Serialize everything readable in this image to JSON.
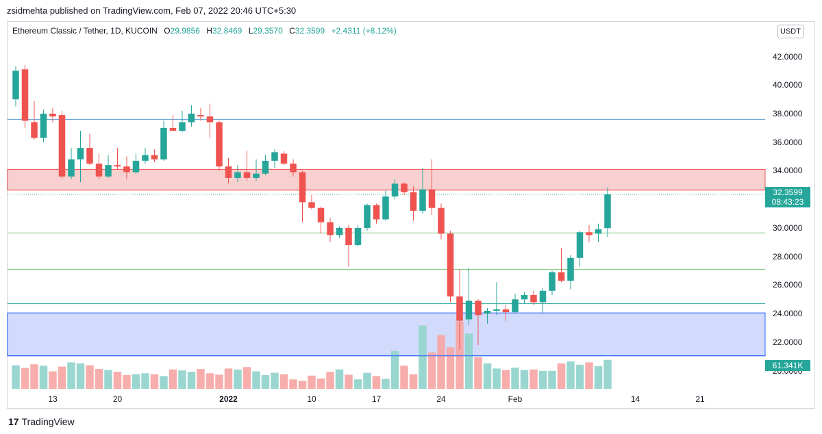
{
  "header": {
    "publisher": "zsidmehta published on TradingView.com, Feb 07, 2022 20:46 UTC+5:30"
  },
  "legend": {
    "symbol": "Ethereum Classic / Tether, 1D, KUCOIN",
    "o_label": "O",
    "o_value": "29.9856",
    "h_label": "H",
    "h_value": "32.8469",
    "l_label": "L",
    "l_value": "29.3570",
    "c_label": "C",
    "c_value": "32.3599",
    "change": "+2.4311 (+8.12%)"
  },
  "currency_button": "USDT",
  "badges": {
    "price": "32.3599",
    "countdown": "08:43:23",
    "volume": "61.341K"
  },
  "footer": {
    "logo_mark": "17",
    "brand": "TradingView"
  },
  "colors": {
    "up": "#26a69a",
    "down": "#ef5350",
    "up_volume": "#95d4cd",
    "down_volume": "#f7a9a7",
    "resistance_zone": "#f9d0d0",
    "support_zone": "#d2dbfb"
  },
  "chart_data": {
    "type": "candlestick",
    "symbol": "Ethereum Classic / Tether",
    "interval": "1D",
    "exchange": "KUCOIN",
    "y_ticks": [
      "42.0000",
      "40.0000",
      "38.0000",
      "36.0000",
      "34.0000",
      "30.0000",
      "28.0000",
      "26.0000",
      "24.0000",
      "22.0000",
      "20.0000"
    ],
    "ylim": [
      19.6,
      42.6
    ],
    "x_ticks": [
      {
        "label": "13",
        "index": 4,
        "bold": false
      },
      {
        "label": "20",
        "index": 11,
        "bold": false
      },
      {
        "label": "2022",
        "index": 23,
        "bold": true
      },
      {
        "label": "10",
        "index": 32,
        "bold": false
      },
      {
        "label": "17",
        "index": 39,
        "bold": false
      },
      {
        "label": "24",
        "index": 46,
        "bold": false
      },
      {
        "label": "Feb",
        "index": 54,
        "bold": false
      },
      {
        "label": "14",
        "index": 67,
        "bold": false
      },
      {
        "label": "21",
        "index": 74,
        "bold": false
      }
    ],
    "horizontal_lines": [
      {
        "price": 37.6,
        "color": "#5b9bd5"
      },
      {
        "price": 32.65,
        "color": "#ef5350"
      },
      {
        "price": 29.65,
        "color": "#81c784"
      },
      {
        "price": 27.1,
        "color": "#81c784"
      },
      {
        "price": 24.7,
        "color": "#26a69a"
      },
      {
        "price": 21.05,
        "color": "#2962ff"
      }
    ],
    "zones": [
      {
        "from": 32.65,
        "to": 34.1,
        "color": "#f9d0d0",
        "border": "#ef5350"
      },
      {
        "from": 21.05,
        "to": 24.05,
        "color": "#d2dbfb",
        "border": "#2962ff"
      }
    ],
    "last_price_line": 32.36,
    "candles": [
      {
        "o": 39.0,
        "h": 41.3,
        "l": 38.5,
        "c": 41.0
      },
      {
        "o": 41.1,
        "h": 41.4,
        "l": 37.0,
        "c": 37.5
      },
      {
        "o": 37.4,
        "h": 38.9,
        "l": 36.2,
        "c": 36.3
      },
      {
        "o": 36.3,
        "h": 38.3,
        "l": 36.0,
        "c": 38.0
      },
      {
        "o": 38.0,
        "h": 38.4,
        "l": 37.4,
        "c": 37.8
      },
      {
        "o": 37.9,
        "h": 38.2,
        "l": 33.4,
        "c": 33.6
      },
      {
        "o": 33.6,
        "h": 35.6,
        "l": 33.4,
        "c": 34.8
      },
      {
        "o": 34.8,
        "h": 36.8,
        "l": 33.2,
        "c": 35.6
      },
      {
        "o": 35.6,
        "h": 36.6,
        "l": 34.4,
        "c": 34.5
      },
      {
        "o": 34.5,
        "h": 35.2,
        "l": 33.4,
        "c": 33.6
      },
      {
        "o": 33.6,
        "h": 35.1,
        "l": 33.5,
        "c": 34.4
      },
      {
        "o": 34.4,
        "h": 35.6,
        "l": 34.1,
        "c": 34.3
      },
      {
        "o": 34.3,
        "h": 35.0,
        "l": 33.4,
        "c": 33.9
      },
      {
        "o": 33.9,
        "h": 35.2,
        "l": 33.8,
        "c": 34.7
      },
      {
        "o": 34.7,
        "h": 35.6,
        "l": 34.5,
        "c": 35.1
      },
      {
        "o": 35.1,
        "h": 35.5,
        "l": 34.6,
        "c": 34.8
      },
      {
        "o": 34.8,
        "h": 37.5,
        "l": 34.7,
        "c": 37.0
      },
      {
        "o": 37.0,
        "h": 37.9,
        "l": 36.8,
        "c": 36.8
      },
      {
        "o": 36.8,
        "h": 38.2,
        "l": 36.7,
        "c": 37.4
      },
      {
        "o": 37.4,
        "h": 38.6,
        "l": 37.1,
        "c": 38.0
      },
      {
        "o": 37.9,
        "h": 38.4,
        "l": 37.5,
        "c": 37.8
      },
      {
        "o": 37.8,
        "h": 38.7,
        "l": 36.3,
        "c": 37.4
      },
      {
        "o": 37.4,
        "h": 37.5,
        "l": 34.0,
        "c": 34.3
      },
      {
        "o": 34.3,
        "h": 34.9,
        "l": 33.1,
        "c": 33.5
      },
      {
        "o": 33.5,
        "h": 34.4,
        "l": 33.2,
        "c": 33.9
      },
      {
        "o": 33.9,
        "h": 35.4,
        "l": 33.3,
        "c": 33.5
      },
      {
        "o": 33.5,
        "h": 34.8,
        "l": 33.3,
        "c": 33.8
      },
      {
        "o": 33.8,
        "h": 35.1,
        "l": 33.7,
        "c": 34.7
      },
      {
        "o": 34.7,
        "h": 35.5,
        "l": 34.2,
        "c": 35.3
      },
      {
        "o": 35.2,
        "h": 35.4,
        "l": 34.4,
        "c": 34.5
      },
      {
        "o": 34.5,
        "h": 34.8,
        "l": 33.6,
        "c": 33.9
      },
      {
        "o": 33.9,
        "h": 34.0,
        "l": 30.4,
        "c": 31.8
      },
      {
        "o": 31.8,
        "h": 32.3,
        "l": 31.3,
        "c": 31.4
      },
      {
        "o": 31.4,
        "h": 31.5,
        "l": 29.6,
        "c": 30.4
      },
      {
        "o": 30.4,
        "h": 30.7,
        "l": 29.0,
        "c": 29.5
      },
      {
        "o": 29.5,
        "h": 30.1,
        "l": 29.3,
        "c": 30.0
      },
      {
        "o": 30.0,
        "h": 30.2,
        "l": 27.3,
        "c": 28.8
      },
      {
        "o": 28.8,
        "h": 30.2,
        "l": 28.7,
        "c": 30.0
      },
      {
        "o": 30.0,
        "h": 31.7,
        "l": 29.8,
        "c": 31.6
      },
      {
        "o": 31.6,
        "h": 31.7,
        "l": 30.3,
        "c": 30.6
      },
      {
        "o": 30.6,
        "h": 32.6,
        "l": 30.5,
        "c": 32.2
      },
      {
        "o": 32.2,
        "h": 33.4,
        "l": 32.0,
        "c": 33.1
      },
      {
        "o": 33.1,
        "h": 33.2,
        "l": 32.3,
        "c": 32.5
      },
      {
        "o": 32.5,
        "h": 32.9,
        "l": 30.5,
        "c": 31.2
      },
      {
        "o": 31.2,
        "h": 34.2,
        "l": 31.0,
        "c": 32.7
      },
      {
        "o": 32.7,
        "h": 34.8,
        "l": 30.9,
        "c": 31.4
      },
      {
        "o": 31.4,
        "h": 31.7,
        "l": 29.2,
        "c": 29.6
      },
      {
        "o": 29.6,
        "h": 29.8,
        "l": 24.8,
        "c": 25.2
      },
      {
        "o": 25.2,
        "h": 27.1,
        "l": 21.5,
        "c": 23.5
      },
      {
        "o": 23.6,
        "h": 27.2,
        "l": 23.2,
        "c": 24.9
      },
      {
        "o": 24.9,
        "h": 25.0,
        "l": 21.8,
        "c": 23.9
      },
      {
        "o": 24.0,
        "h": 24.4,
        "l": 23.3,
        "c": 24.2
      },
      {
        "o": 24.2,
        "h": 26.2,
        "l": 23.9,
        "c": 24.3
      },
      {
        "o": 24.3,
        "h": 24.6,
        "l": 23.5,
        "c": 24.1
      },
      {
        "o": 24.1,
        "h": 25.4,
        "l": 24.0,
        "c": 25.0
      },
      {
        "o": 25.0,
        "h": 25.5,
        "l": 24.7,
        "c": 25.3
      },
      {
        "o": 25.3,
        "h": 25.6,
        "l": 24.6,
        "c": 24.8
      },
      {
        "o": 24.8,
        "h": 25.8,
        "l": 24.0,
        "c": 25.6
      },
      {
        "o": 25.6,
        "h": 27.0,
        "l": 25.3,
        "c": 26.9
      },
      {
        "o": 26.9,
        "h": 28.6,
        "l": 26.2,
        "c": 26.3
      },
      {
        "o": 26.3,
        "h": 28.1,
        "l": 25.7,
        "c": 27.9
      },
      {
        "o": 27.9,
        "h": 29.8,
        "l": 27.3,
        "c": 29.7
      },
      {
        "o": 29.7,
        "h": 30.2,
        "l": 29.0,
        "c": 29.5
      },
      {
        "o": 29.6,
        "h": 30.3,
        "l": 29.0,
        "c": 29.9
      },
      {
        "o": 29.9856,
        "h": 32.8469,
        "l": 29.357,
        "c": 32.3599
      }
    ],
    "volume_axis_max": 145000,
    "volumes": [
      50000,
      44000,
      52000,
      49000,
      37000,
      47000,
      56000,
      54000,
      50000,
      42000,
      40000,
      36000,
      29000,
      31000,
      33000,
      31000,
      27000,
      41000,
      39000,
      36000,
      42000,
      33000,
      30000,
      43000,
      41000,
      46000,
      37000,
      29000,
      34000,
      31000,
      20000,
      17000,
      28000,
      22000,
      36000,
      41000,
      30000,
      20000,
      34000,
      27000,
      21000,
      80000,
      49000,
      31000,
      134000,
      77000,
      114000,
      88000,
      143000,
      117000,
      67000,
      54000,
      43000,
      40000,
      45000,
      40000,
      41000,
      38000,
      38000,
      54000,
      58000,
      51000,
      56000,
      48000,
      61341
    ]
  }
}
